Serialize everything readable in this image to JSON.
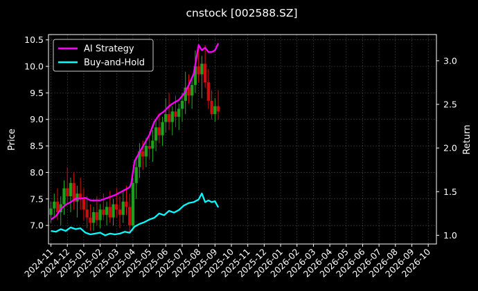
{
  "chart_data": {
    "type": "line",
    "title": "cnstock [002588.SZ]",
    "ylabel_left": "Price",
    "ylabel_right": "Return",
    "grid": true,
    "legend_position": "top-left",
    "x_ticks": [
      "2024-11",
      "2024-12",
      "2025-01",
      "2025-02",
      "2025-03",
      "2025-04",
      "2025-05",
      "2025-06",
      "2025-07",
      "2025-08",
      "2025-09",
      "2025-10",
      "2025-11",
      "2025-12",
      "2026-01",
      "2026-02",
      "2026-03",
      "2026-04",
      "2026-05",
      "2026-06",
      "2026-07",
      "2026-08",
      "2026-09",
      "2026-10"
    ],
    "xlim": [
      -0.15,
      23.5
    ],
    "y_left": {
      "lim": [
        6.65,
        10.6
      ],
      "ticks": [
        "7.0",
        "7.5",
        "8.0",
        "8.5",
        "9.0",
        "9.5",
        "10.0",
        "10.5"
      ]
    },
    "y_right": {
      "lim": [
        0.9,
        3.3
      ],
      "ticks": [
        "1.0",
        "1.5",
        "2.0",
        "2.5",
        "3.0"
      ]
    },
    "price_ohlc": [
      [
        0.0,
        7.2,
        7.45,
        7.05,
        7.32
      ],
      [
        0.2,
        7.32,
        7.6,
        7.15,
        7.45
      ],
      [
        0.4,
        7.45,
        7.7,
        7.1,
        7.25
      ],
      [
        0.6,
        7.25,
        7.55,
        7.0,
        7.4
      ],
      [
        0.8,
        7.4,
        7.85,
        7.2,
        7.7
      ],
      [
        1.0,
        7.7,
        8.1,
        7.4,
        7.55
      ],
      [
        1.2,
        7.55,
        7.9,
        7.25,
        7.8
      ],
      [
        1.4,
        7.8,
        8.0,
        7.3,
        7.45
      ],
      [
        1.6,
        7.45,
        7.75,
        7.15,
        7.6
      ],
      [
        1.8,
        7.6,
        7.9,
        7.3,
        7.5
      ],
      [
        2.0,
        7.5,
        7.7,
        7.1,
        7.3
      ],
      [
        2.2,
        7.3,
        7.55,
        6.95,
        7.15
      ],
      [
        2.4,
        7.15,
        7.4,
        6.9,
        7.05
      ],
      [
        2.6,
        7.05,
        7.35,
        6.9,
        7.25
      ],
      [
        2.8,
        7.25,
        7.55,
        7.0,
        7.1
      ],
      [
        3.0,
        7.1,
        7.4,
        6.95,
        7.3
      ],
      [
        3.2,
        7.3,
        7.6,
        7.1,
        7.2
      ],
      [
        3.4,
        7.2,
        7.45,
        7.0,
        7.35
      ],
      [
        3.6,
        7.35,
        7.65,
        7.05,
        7.15
      ],
      [
        3.8,
        7.15,
        7.5,
        7.0,
        7.4
      ],
      [
        4.0,
        7.4,
        7.7,
        7.15,
        7.3
      ],
      [
        4.2,
        7.3,
        7.55,
        6.95,
        7.2
      ],
      [
        4.4,
        7.2,
        7.65,
        7.05,
        7.45
      ],
      [
        4.6,
        7.45,
        7.75,
        7.2,
        7.35
      ],
      [
        4.8,
        7.35,
        7.6,
        6.85,
        7.0
      ],
      [
        5.0,
        7.0,
        7.9,
        6.9,
        7.8
      ],
      [
        5.2,
        7.8,
        8.3,
        7.5,
        8.1
      ],
      [
        5.4,
        8.1,
        8.55,
        7.9,
        8.4
      ],
      [
        5.6,
        8.4,
        8.6,
        8.05,
        8.3
      ],
      [
        5.8,
        8.3,
        8.65,
        8.1,
        8.5
      ],
      [
        6.0,
        8.5,
        8.75,
        8.25,
        8.45
      ],
      [
        6.2,
        8.45,
        8.8,
        8.2,
        8.6
      ],
      [
        6.4,
        8.6,
        9.0,
        8.4,
        8.85
      ],
      [
        6.6,
        8.85,
        9.1,
        8.55,
        8.7
      ],
      [
        6.8,
        8.7,
        9.05,
        8.5,
        8.95
      ],
      [
        7.0,
        8.95,
        9.4,
        8.75,
        9.1
      ],
      [
        7.2,
        9.1,
        9.5,
        8.8,
        8.95
      ],
      [
        7.4,
        8.95,
        9.25,
        8.7,
        9.15
      ],
      [
        7.6,
        9.15,
        9.45,
        8.85,
        9.05
      ],
      [
        7.8,
        9.05,
        9.3,
        8.8,
        9.2
      ],
      [
        8.0,
        9.2,
        9.5,
        8.95,
        9.35
      ],
      [
        8.2,
        9.35,
        9.9,
        9.1,
        9.6
      ],
      [
        8.4,
        9.6,
        9.85,
        9.3,
        9.45
      ],
      [
        8.6,
        9.45,
        9.75,
        9.2,
        9.65
      ],
      [
        8.8,
        9.65,
        10.3,
        9.5,
        10.0
      ],
      [
        9.0,
        10.0,
        10.35,
        9.7,
        9.85
      ],
      [
        9.2,
        9.85,
        10.2,
        9.4,
        10.05
      ],
      [
        9.4,
        10.05,
        10.4,
        9.6,
        9.7
      ],
      [
        9.6,
        9.7,
        9.95,
        9.2,
        9.35
      ],
      [
        9.8,
        9.35,
        9.55,
        9.0,
        9.1
      ],
      [
        10.0,
        9.1,
        9.4,
        8.95,
        9.25
      ],
      [
        10.2,
        9.25,
        9.55,
        9.0,
        9.15
      ]
    ],
    "series": [
      {
        "name": "AI Strategy",
        "color": "#ff00ff",
        "axis": "right",
        "x": [
          0.0,
          0.3,
          0.6,
          0.9,
          1.2,
          1.5,
          1.8,
          2.1,
          2.4,
          2.7,
          3.0,
          3.3,
          3.6,
          3.9,
          4.2,
          4.5,
          4.8,
          4.9,
          5.1,
          5.4,
          5.7,
          6.0,
          6.3,
          6.6,
          6.9,
          7.2,
          7.5,
          7.8,
          8.1,
          8.4,
          8.7,
          9.0,
          9.2,
          9.4,
          9.6,
          9.8,
          10.0,
          10.2
        ],
        "y": [
          1.18,
          1.22,
          1.3,
          1.35,
          1.38,
          1.42,
          1.42,
          1.43,
          1.4,
          1.4,
          1.4,
          1.42,
          1.44,
          1.46,
          1.49,
          1.52,
          1.55,
          1.6,
          1.85,
          1.95,
          2.05,
          2.15,
          2.3,
          2.38,
          2.42,
          2.48,
          2.52,
          2.55,
          2.62,
          2.72,
          2.85,
          3.18,
          3.12,
          3.15,
          3.1,
          3.1,
          3.12,
          3.2
        ]
      },
      {
        "name": "Buy-and-Hold",
        "color": "#00ffff",
        "axis": "right",
        "x": [
          0.0,
          0.3,
          0.6,
          0.9,
          1.2,
          1.5,
          1.8,
          2.1,
          2.4,
          2.7,
          3.0,
          3.3,
          3.6,
          3.9,
          4.2,
          4.5,
          4.8,
          5.1,
          5.4,
          5.7,
          6.0,
          6.3,
          6.6,
          6.9,
          7.2,
          7.5,
          7.8,
          8.1,
          8.4,
          8.7,
          9.0,
          9.2,
          9.4,
          9.6,
          9.8,
          10.0,
          10.2
        ],
        "y": [
          1.05,
          1.04,
          1.07,
          1.05,
          1.09,
          1.07,
          1.08,
          1.03,
          1.01,
          1.02,
          1.03,
          1.0,
          1.02,
          1.01,
          1.02,
          1.04,
          1.03,
          1.1,
          1.13,
          1.15,
          1.18,
          1.2,
          1.25,
          1.23,
          1.28,
          1.26,
          1.29,
          1.34,
          1.37,
          1.38,
          1.41,
          1.48,
          1.38,
          1.4,
          1.38,
          1.39,
          1.32
        ]
      }
    ]
  }
}
